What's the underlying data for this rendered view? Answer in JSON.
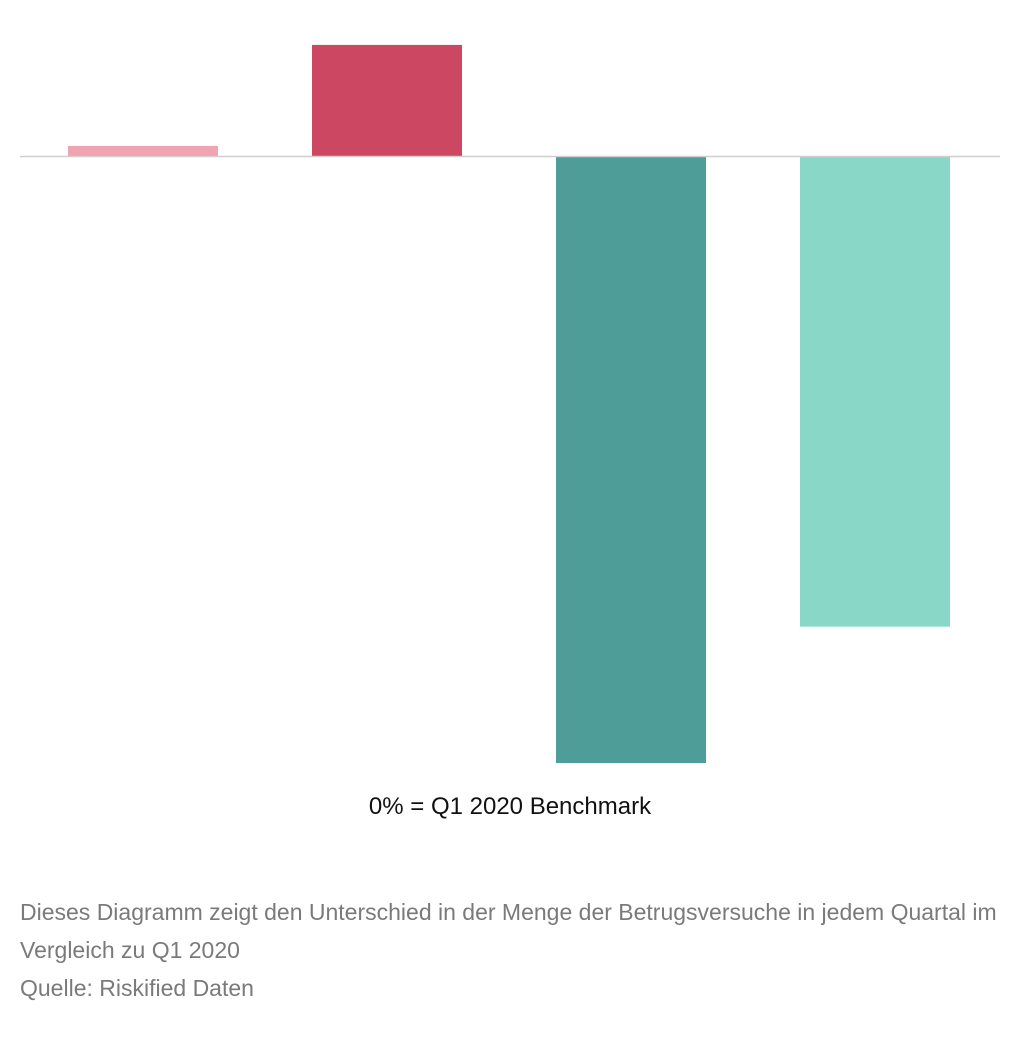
{
  "chart_data": {
    "type": "bar",
    "categories": [
      "",
      "",
      "",
      ""
    ],
    "values": [
      2,
      22,
      -120,
      -93
    ],
    "colors": [
      "#f0a3b1",
      "#cc4761",
      "#4e9d99",
      "#89d8c7"
    ],
    "baseline_color": "#cfcfcf",
    "ylim": [
      -125,
      25
    ],
    "grid": false,
    "title": "",
    "xlabel": "",
    "ylabel": ""
  },
  "benchmark_label": "0% = Q1 2020 Benchmark",
  "caption": {
    "description": "Dieses Diagramm zeigt den Unterschied in der Menge der Betrugsversuche in jedem Quartal im Vergleich zu Q1 2020",
    "source": "Quelle: Riskified Daten"
  }
}
